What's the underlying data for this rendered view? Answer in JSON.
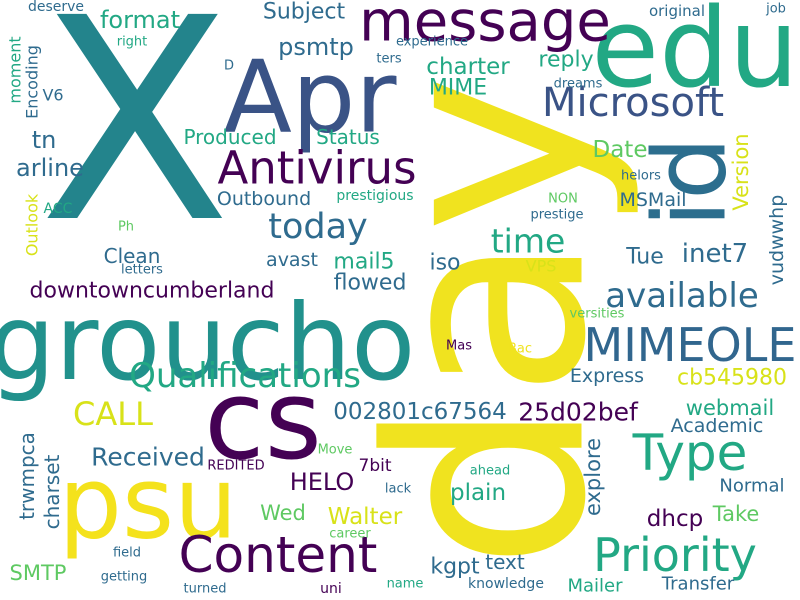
{
  "colors": {
    "background": "#ffffff",
    "palette": [
      "#440154",
      "#3b528b",
      "#21918c",
      "#5ec962",
      "#fde725"
    ]
  },
  "words": [
    {
      "text": "X",
      "color": "#23848c"
    },
    {
      "text": "day",
      "color": "#f0e31f"
    },
    {
      "text": "groucho",
      "color": "#21918c"
    },
    {
      "text": "Apr",
      "color": "#3a5386"
    },
    {
      "text": "edu",
      "color": "#22a884"
    },
    {
      "text": "id",
      "color": "#2c6e8e"
    },
    {
      "text": "psu",
      "color": "#f4e21c"
    },
    {
      "text": "cs",
      "color": "#440154"
    },
    {
      "text": "message",
      "color": "#440154"
    },
    {
      "text": "Content",
      "color": "#440154"
    },
    {
      "text": "Priority",
      "color": "#22a884"
    },
    {
      "text": "Type",
      "color": "#22a884"
    },
    {
      "text": "Antivirus",
      "color": "#440154"
    },
    {
      "text": "Microsoft",
      "color": "#3a5386"
    },
    {
      "text": "MIMEOLE",
      "color": "#31668e"
    },
    {
      "text": "Qualifications",
      "color": "#22a884"
    },
    {
      "text": "available",
      "color": "#2f6b8e"
    },
    {
      "text": "today",
      "color": "#2f6b8e"
    },
    {
      "text": "time",
      "color": "#22a884"
    },
    {
      "text": "CALL",
      "color": "#d8e219"
    },
    {
      "text": "format",
      "color": "#22a884"
    },
    {
      "text": "Subject",
      "color": "#2f6b8e"
    },
    {
      "text": "psmtp",
      "color": "#2f6b8e"
    },
    {
      "text": "charter",
      "color": "#22a884"
    },
    {
      "text": "reply",
      "color": "#22a884"
    },
    {
      "text": "MIME",
      "color": "#22a884"
    },
    {
      "text": "tn",
      "color": "#2f6b8e"
    },
    {
      "text": "arline",
      "color": "#2f6b8e"
    },
    {
      "text": "Produced",
      "color": "#22a884"
    },
    {
      "text": "Status",
      "color": "#22a884"
    },
    {
      "text": "Date",
      "color": "#5ec962"
    },
    {
      "text": "Version",
      "color": "#d8e219"
    },
    {
      "text": "Outbound",
      "color": "#2f6b8e"
    },
    {
      "text": "Clean",
      "color": "#2f6b8e"
    },
    {
      "text": "avast",
      "color": "#2f6b8e"
    },
    {
      "text": "mail5",
      "color": "#22a884"
    },
    {
      "text": "iso",
      "color": "#2f6b8e"
    },
    {
      "text": "flowed",
      "color": "#2f6b8e"
    },
    {
      "text": "downtowncumberland",
      "color": "#440154"
    },
    {
      "text": "Tue",
      "color": "#2f6b8e"
    },
    {
      "text": "inet7",
      "color": "#2f6b8e"
    },
    {
      "text": "vudwwhp",
      "color": "#2f6b8e"
    },
    {
      "text": "MSMail",
      "color": "#2f6b8e"
    },
    {
      "text": "cb545980",
      "color": "#d8e219"
    },
    {
      "text": "002801c67564",
      "color": "#2f6b8e"
    },
    {
      "text": "25d02bef",
      "color": "#440154"
    },
    {
      "text": "webmail",
      "color": "#22a884"
    },
    {
      "text": "Express",
      "color": "#2f6b8e"
    },
    {
      "text": "Academic",
      "color": "#2f6b8e"
    },
    {
      "text": "Received",
      "color": "#2f6b8e"
    },
    {
      "text": "trwmpca",
      "color": "#2f6b8e"
    },
    {
      "text": "charset",
      "color": "#2f6b8e"
    },
    {
      "text": "HELO",
      "color": "#440154"
    },
    {
      "text": "Walter",
      "color": "#d8e219"
    },
    {
      "text": "Wed",
      "color": "#5ec962"
    },
    {
      "text": "7bit",
      "color": "#440154"
    },
    {
      "text": "plain",
      "color": "#22a884"
    },
    {
      "text": "explore",
      "color": "#2f6b8e"
    },
    {
      "text": "Normal",
      "color": "#2f6b8e"
    },
    {
      "text": "dhcp",
      "color": "#440154"
    },
    {
      "text": "Take",
      "color": "#5ec962"
    },
    {
      "text": "kgpt",
      "color": "#2f6b8e"
    },
    {
      "text": "text",
      "color": "#2f6b8e"
    },
    {
      "text": "SMTP",
      "color": "#5ec962"
    },
    {
      "text": "Mailer",
      "color": "#22a884"
    },
    {
      "text": "Transfer",
      "color": "#2f6b8e"
    },
    {
      "text": "V6",
      "color": "#2f6b8e"
    },
    {
      "text": "Encoding",
      "color": "#2f6b8e"
    },
    {
      "text": "moment",
      "color": "#22a884"
    },
    {
      "text": "Outlook",
      "color": "#d8e219"
    },
    {
      "text": "ACC",
      "color": "#22a884"
    },
    {
      "text": "Ph",
      "color": "#5ec962"
    },
    {
      "text": "letters",
      "color": "#2f6b8e"
    },
    {
      "text": "prestigious",
      "color": "#22a884"
    },
    {
      "text": "prestige",
      "color": "#2f6b8e"
    },
    {
      "text": "NON",
      "color": "#5ec962"
    },
    {
      "text": "helors",
      "color": "#2f6b8e"
    },
    {
      "text": "VPS",
      "color": "#d8e219"
    },
    {
      "text": "versities",
      "color": "#5ec962"
    },
    {
      "text": "Mas",
      "color": "#440154"
    },
    {
      "text": "Bac",
      "color": "#f0e31f"
    },
    {
      "text": "deserve",
      "color": "#2f6b8e"
    },
    {
      "text": "right",
      "color": "#22a884"
    },
    {
      "text": "D",
      "color": "#2f6b8e"
    },
    {
      "text": "experience",
      "color": "#2f6b8e"
    },
    {
      "text": "ters",
      "color": "#2f6b8e"
    },
    {
      "text": "original",
      "color": "#2f6b8e"
    },
    {
      "text": "job",
      "color": "#2f6b8e"
    },
    {
      "text": "dreams",
      "color": "#2f6b8e"
    },
    {
      "text": "Move",
      "color": "#5ec962"
    },
    {
      "text": "REDITED",
      "color": "#440154"
    },
    {
      "text": "lack",
      "color": "#2f6b8e"
    },
    {
      "text": "ahead",
      "color": "#22a884"
    },
    {
      "text": "career",
      "color": "#5ec962"
    },
    {
      "text": "field",
      "color": "#2f6b8e"
    },
    {
      "text": "getting",
      "color": "#2f6b8e"
    },
    {
      "text": "turned",
      "color": "#2f6b8e"
    },
    {
      "text": "uni",
      "color": "#440154"
    },
    {
      "text": "name",
      "color": "#22a884"
    },
    {
      "text": "knowledge",
      "color": "#2f6b8e"
    }
  ]
}
